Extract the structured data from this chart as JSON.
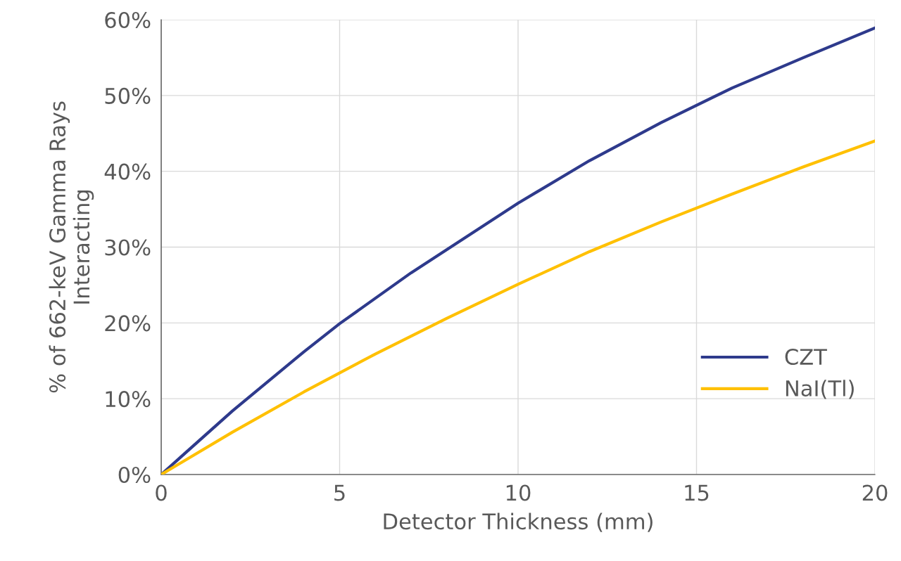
{
  "chart_data": {
    "type": "line",
    "xlabel": "Detector Thickness (mm)",
    "ylabel": "% of 662-keV Gamma Rays\nInteracting",
    "x": [
      0,
      2,
      4,
      5,
      7,
      10,
      12,
      14,
      16,
      18,
      20
    ],
    "series": [
      {
        "name": "CZT",
        "color": "#2e3a8c",
        "values": [
          0,
          8.4,
          16.2,
          19.9,
          26.6,
          35.8,
          41.4,
          46.4,
          51.0,
          55.0,
          58.9
        ]
      },
      {
        "name": "NaI(Tl)",
        "color": "#ffc000",
        "x": [
          0,
          2,
          4,
          6,
          8,
          10,
          12,
          14,
          16,
          18,
          20
        ],
        "values": [
          0,
          5.6,
          10.9,
          15.9,
          20.6,
          25.1,
          29.4,
          33.3,
          37.0,
          40.6,
          44.0
        ]
      }
    ],
    "xlim": [
      0,
      20
    ],
    "ylim": [
      0,
      60
    ],
    "xticks": [
      0,
      5,
      10,
      15,
      20
    ],
    "yticks": [
      {
        "value": 0,
        "label": "0%"
      },
      {
        "value": 10,
        "label": "10%"
      },
      {
        "value": 20,
        "label": "20%"
      },
      {
        "value": 30,
        "label": "30%"
      },
      {
        "value": 40,
        "label": "40%"
      },
      {
        "value": 50,
        "label": "50%"
      },
      {
        "value": 60,
        "label": "60%"
      }
    ],
    "grid": true,
    "legend": "bottom right",
    "marker": "none",
    "line_style": "solid"
  }
}
